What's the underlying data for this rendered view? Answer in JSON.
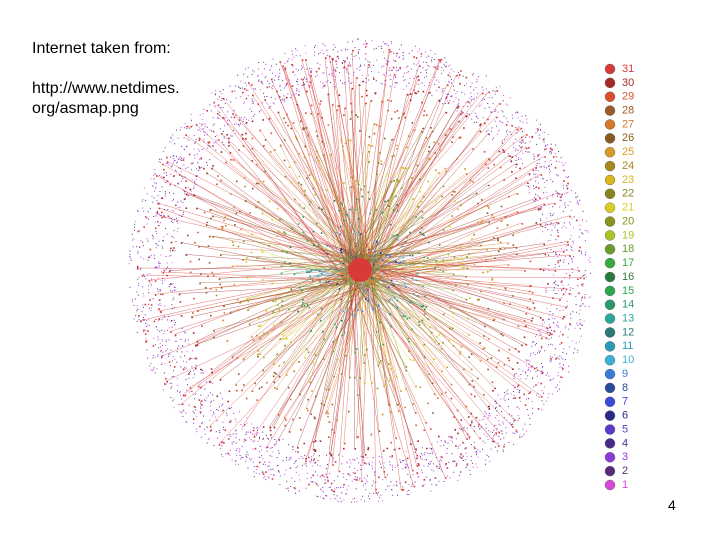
{
  "header": {
    "lines": [
      "Internet taken from:",
      "http://www.netdimes.",
      "org/asmap.png"
    ]
  },
  "legend": {
    "items": [
      {
        "label": "31",
        "color": "#d83a3a"
      },
      {
        "label": "30",
        "color": "#a82828"
      },
      {
        "label": "29",
        "color": "#d8502a"
      },
      {
        "label": "28",
        "color": "#9a5a2a"
      },
      {
        "label": "27",
        "color": "#d8782a"
      },
      {
        "label": "26",
        "color": "#8a5a20"
      },
      {
        "label": "25",
        "color": "#d89a2a"
      },
      {
        "label": "24",
        "color": "#a8861e"
      },
      {
        "label": "23",
        "color": "#d8b81e"
      },
      {
        "label": "22",
        "color": "#8a8420"
      },
      {
        "label": "21",
        "color": "#d8d020"
      },
      {
        "label": "20",
        "color": "#8a9420"
      },
      {
        "label": "19",
        "color": "#a8c428"
      },
      {
        "label": "18",
        "color": "#6a9a28"
      },
      {
        "label": "17",
        "color": "#3aa83a"
      },
      {
        "label": "16",
        "color": "#2a7a3a"
      },
      {
        "label": "15",
        "color": "#2aa84a"
      },
      {
        "label": "14",
        "color": "#2a9a6a"
      },
      {
        "label": "13",
        "color": "#2aa89a"
      },
      {
        "label": "12",
        "color": "#2a7a7a"
      },
      {
        "label": "11",
        "color": "#2a9ab8"
      },
      {
        "label": "10",
        "color": "#3ab0d8"
      },
      {
        "label": "9",
        "color": "#3a7ad8"
      },
      {
        "label": "8",
        "color": "#2a4a9a"
      },
      {
        "label": "7",
        "color": "#3a4ad8"
      },
      {
        "label": "6",
        "color": "#2a2a8a"
      },
      {
        "label": "5",
        "color": "#5a3ac8"
      },
      {
        "label": "4",
        "color": "#4a2a8a"
      },
      {
        "label": "3",
        "color": "#8a3ad8"
      },
      {
        "label": "2",
        "color": "#5a2a7a"
      },
      {
        "label": "1",
        "color": "#d848d8"
      }
    ]
  },
  "footer": {
    "page": "4"
  }
}
